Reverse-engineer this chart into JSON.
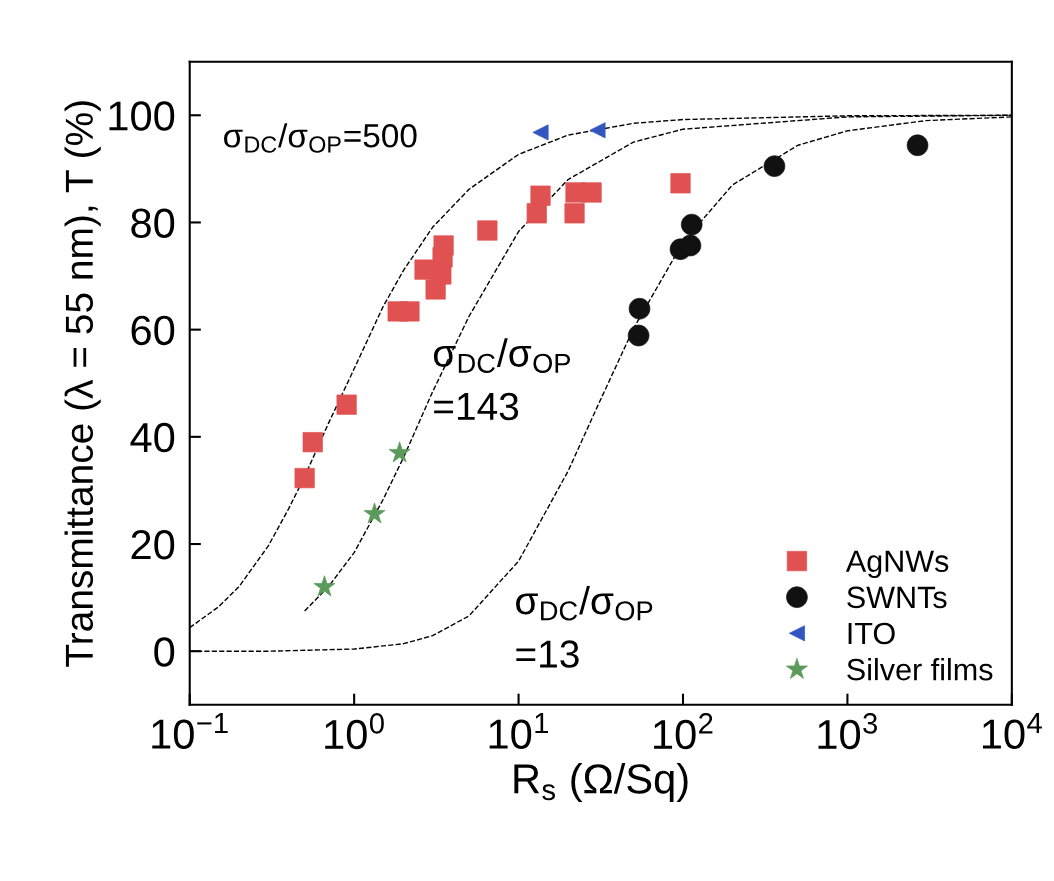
{
  "chart_data": {
    "type": "scatter",
    "xlabel": "R$_{s}$ (Ω/Sq)",
    "ylabel": "Transmittance (λ = 55 nm), T (%)",
    "log": "x",
    "xlim": [
      0.1,
      10000
    ],
    "ylim": [
      -10,
      110
    ],
    "xticks": [
      {
        "value": 0.1,
        "label": "10$^{−1}$"
      },
      {
        "value": 1,
        "label": "10$^{0}$"
      },
      {
        "value": 10,
        "label": "10$^{1}$"
      },
      {
        "value": 100,
        "label": "10$^{2}$"
      },
      {
        "value": 1000,
        "label": "10$^{3}$"
      },
      {
        "value": 10000,
        "label": "10$^{4}$"
      }
    ],
    "yticks": [
      0,
      20,
      40,
      60,
      80,
      100
    ],
    "grid": false,
    "legend": "bottom right",
    "series": [
      {
        "type": "line",
        "color": "#000000",
        "line_style": "dashed",
        "marker": "none",
        "x": [
          0.1,
          0.15,
          0.2,
          0.3,
          0.4,
          0.5,
          0.7,
          1,
          1.5,
          2,
          3,
          5,
          10,
          20,
          50,
          100,
          1000,
          10000
        ],
        "values": [
          4.4,
          8.3,
          12.1,
          19.6,
          26.6,
          32.6,
          42.6,
          52.7,
          64.3,
          71.1,
          79.1,
          86.2,
          92.7,
          96.3,
          98.5,
          99.2,
          99.9,
          100
        ]
      },
      {
        "type": "line",
        "color": "#000000",
        "line_style": "dashed",
        "marker": "none",
        "x": [
          0.5,
          0.7,
          1,
          1.5,
          2,
          3,
          5,
          10,
          20,
          50,
          100,
          1000,
          10000
        ],
        "values": [
          7.5,
          12.1,
          18.4,
          28.3,
          36.2,
          48.4,
          62.5,
          78.3,
          88.0,
          95.0,
          97.4,
          99.7,
          100
        ]
      },
      {
        "type": "line",
        "color": "#000000",
        "line_style": "dashed",
        "marker": "none",
        "x": [
          0.1,
          0.3,
          1,
          2,
          3,
          5,
          10,
          20,
          30,
          50,
          100,
          200,
          500,
          1000,
          3000,
          10000
        ],
        "values": [
          0,
          0,
          0.4,
          1.4,
          2.9,
          6.6,
          16.8,
          33.6,
          45.5,
          60.2,
          76.3,
          87.0,
          94.4,
          97.1,
          99.0,
          99.7
        ]
      },
      {
        "name": "AgNWs",
        "color": "#e05252",
        "marker": "square",
        "x": [
          0.5,
          0.56,
          0.9,
          1.84,
          2.17,
          2.68,
          3.13,
          3.39,
          3.45,
          3.5,
          6.46,
          12.9,
          13.6,
          21.9,
          22.2,
          27.8,
          96.6
        ],
        "values": [
          32.3,
          39,
          46,
          63.4,
          63.4,
          71.2,
          67.5,
          70.3,
          73.5,
          75.7,
          78.5,
          81.7,
          85,
          81.7,
          85.6,
          85.6,
          87.3
        ]
      },
      {
        "name": "SWNTs",
        "color": "#111111",
        "marker": "circle",
        "x": [
          54.4,
          53.7,
          96.6,
          111,
          113,
          360,
          2670
        ],
        "values": [
          63.9,
          58.9,
          75,
          75.7,
          79.6,
          90.5,
          94.4
        ]
      },
      {
        "name": "ITO",
        "color": "#3355c0",
        "marker": "triangle",
        "x": [
          13.6,
          30.2
        ],
        "values": [
          96.8,
          97.2
        ]
      },
      {
        "name": "Silver films",
        "color": "#5a9a5a",
        "marker": "star",
        "x": [
          0.66,
          1.33,
          1.89
        ],
        "values": [
          12,
          25.6,
          37
        ]
      }
    ],
    "annotations": [
      "σ$_{DC}$/σ$_{OP}$=500",
      "σ$_{DC}$/σ$_{OP}$\n=143",
      "σ$_{DC}$/σ$_{OP}$\n=13"
    ]
  }
}
